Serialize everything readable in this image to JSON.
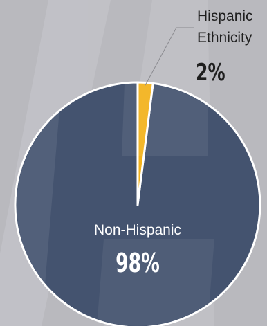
{
  "chart_data": {
    "type": "pie",
    "title": "",
    "slices": [
      {
        "label": "Non-Hispanic",
        "value": 98,
        "value_label": "98%",
        "color": "#44536f"
      },
      {
        "label_lines": [
          "Hispanic",
          "Ethnicity"
        ],
        "value": 2,
        "value_label": "2%",
        "color": "#f3b21b"
      }
    ],
    "background_color": "#b9b9be",
    "outline_color": "#ffffff"
  }
}
